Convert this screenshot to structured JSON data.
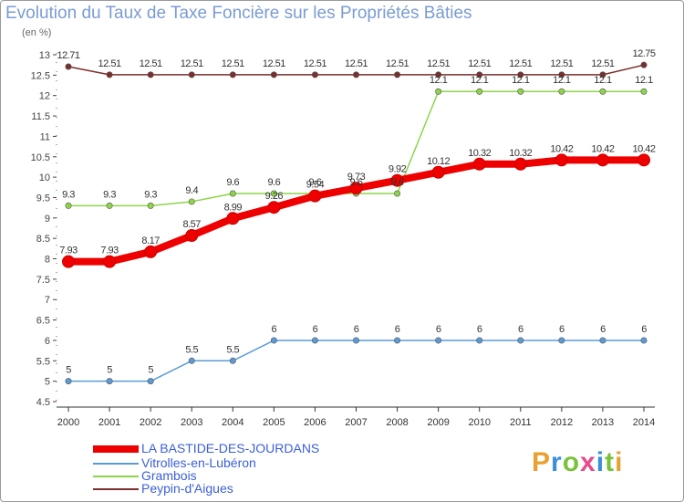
{
  "title": "Evolution du Taux de Taxe Foncière sur les Propriétés Bâties",
  "unit": "(en %)",
  "logo": "Proxiti",
  "chart_data": {
    "type": "line",
    "title": "Evolution du Taux de Taxe Foncière sur les Propriétés Bâties",
    "ylabel": "(en %)",
    "xlabel": "",
    "x": [
      2000,
      2001,
      2002,
      2003,
      2004,
      2005,
      2006,
      2007,
      2008,
      2009,
      2010,
      2011,
      2012,
      2013,
      2014
    ],
    "ylim": [
      4.5,
      13
    ],
    "yticks": [
      "4.5",
      "5",
      "5.5",
      "6",
      "6.5",
      "7",
      "7.5",
      "8",
      "8.5",
      "9",
      "9.5",
      "10",
      "10.5",
      "11",
      "11.5",
      "12",
      "12.5",
      "13"
    ],
    "grid": false,
    "legend_position": "bottom-left",
    "series": [
      {
        "name": "LA BASTIDE-DES-JOURDANS",
        "color": "#ee0000",
        "values": [
          7.93,
          7.93,
          8.17,
          8.57,
          8.99,
          9.26,
          9.54,
          9.73,
          9.92,
          10.12,
          10.32,
          10.32,
          10.42,
          10.42,
          10.42
        ],
        "labels": [
          "7.93",
          "7.93",
          "8.17",
          "8.57",
          "8.99",
          "9.26",
          "9.54",
          "9.73",
          "9.92",
          "10.12",
          "10.32",
          "10.32",
          "10.42",
          "10.42",
          "10.42"
        ]
      },
      {
        "name": "Vitrolles-en-Lubéron",
        "color": "#5b9bd5",
        "values": [
          5,
          5,
          5,
          5.5,
          5.5,
          6,
          6,
          6,
          6,
          6,
          6,
          6,
          6,
          6,
          6
        ],
        "labels": [
          "5",
          "5",
          "5",
          "5.5",
          "5.5",
          "6",
          "6",
          "6",
          "6",
          "6",
          "6",
          "6",
          "6",
          "6",
          "6"
        ]
      },
      {
        "name": "Grambois",
        "color": "#8ed44a",
        "values": [
          9.3,
          9.3,
          9.3,
          9.4,
          9.6,
          9.6,
          9.6,
          9.6,
          9.6,
          12.1,
          12.1,
          12.1,
          12.1,
          12.1,
          12.1
        ],
        "labels": [
          "9.3",
          "9.3",
          "9.3",
          "9.4",
          "9.6",
          "9.6",
          "9.6",
          "9.6",
          "9.6",
          "12.1",
          "12.1",
          "12.1",
          "12.1",
          "12.1",
          "12.1"
        ]
      },
      {
        "name": "Peypin-d'Aigues",
        "color": "#7b2e2e",
        "values": [
          12.71,
          12.51,
          12.51,
          12.51,
          12.51,
          12.51,
          12.51,
          12.51,
          12.51,
          12.51,
          12.51,
          12.51,
          12.51,
          12.51,
          12.75
        ],
        "labels": [
          "12.71",
          "12.51",
          "12.51",
          "12.51",
          "12.51",
          "12.51",
          "12.51",
          "12.51",
          "12.51",
          "12.51",
          "12.51",
          "12.51",
          "12.51",
          "12.51",
          "12.75"
        ]
      }
    ]
  }
}
